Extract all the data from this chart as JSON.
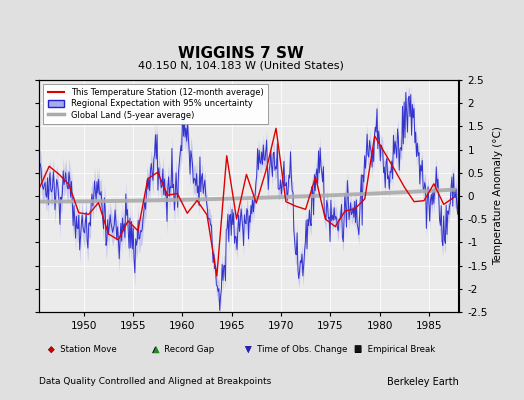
{
  "title": "WIGGINS 7 SW",
  "subtitle": "40.150 N, 104.183 W (United States)",
  "xlabel_bottom": "Data Quality Controlled and Aligned at Breakpoints",
  "xlabel_right": "Berkeley Earth",
  "ylabel": "Temperature Anomaly (°C)",
  "xlim": [
    1945.5,
    1988
  ],
  "ylim": [
    -2.5,
    2.5
  ],
  "yticks": [
    -2.5,
    -2,
    -1.5,
    -1,
    -0.5,
    0,
    0.5,
    1,
    1.5,
    2,
    2.5
  ],
  "xticks": [
    1950,
    1955,
    1960,
    1965,
    1970,
    1975,
    1980,
    1985
  ],
  "bg_color": "#e0e0e0",
  "plot_bg_color": "#ebebeb",
  "regional_color": "#2222cc",
  "regional_fill_color": "#aaaaee",
  "station_color": "#dd0000",
  "global_color": "#aaaaaa",
  "seed": 42
}
